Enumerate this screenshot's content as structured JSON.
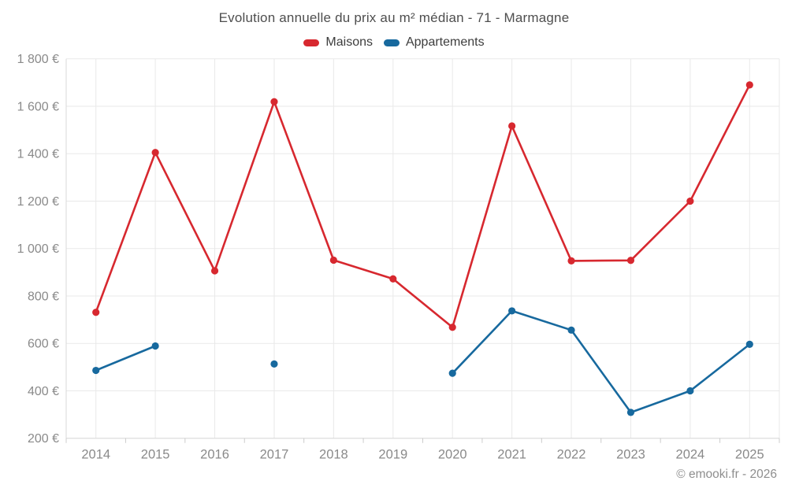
{
  "watermark": "© emooki.fr - 2026",
  "chart_data": {
    "type": "line",
    "title": "Evolution annuelle du prix au m² médian - 71 - Marmagne",
    "categories": [
      "2014",
      "2015",
      "2016",
      "2017",
      "2018",
      "2019",
      "2020",
      "2021",
      "2022",
      "2023",
      "2024",
      "2025"
    ],
    "series": [
      {
        "name": "Maisons",
        "color": "#d7282f",
        "values": [
          731,
          1405,
          906,
          1619,
          951,
          872,
          668,
          1517,
          948,
          950,
          1200,
          1690
        ]
      },
      {
        "name": "Appartements",
        "color": "#17699e",
        "values": [
          486,
          589,
          null,
          513,
          null,
          null,
          474,
          737,
          656,
          309,
          400,
          596
        ]
      }
    ],
    "ylim": [
      200,
      1800
    ],
    "yticks": [
      {
        "value": 200,
        "label": "200 €"
      },
      {
        "value": 400,
        "label": "400 €"
      },
      {
        "value": 600,
        "label": "600 €"
      },
      {
        "value": 800,
        "label": "800 €"
      },
      {
        "value": 1000,
        "label": "1 000 €"
      },
      {
        "value": 1200,
        "label": "1 200 €"
      },
      {
        "value": 1400,
        "label": "1 400 €"
      },
      {
        "value": 1600,
        "label": "1 600 €"
      },
      {
        "value": 1800,
        "label": "1 800 €"
      }
    ],
    "grid": true,
    "legend_position": "top",
    "grid_color": "#e9e9e9",
    "axis_color": "#d9d9d9"
  }
}
